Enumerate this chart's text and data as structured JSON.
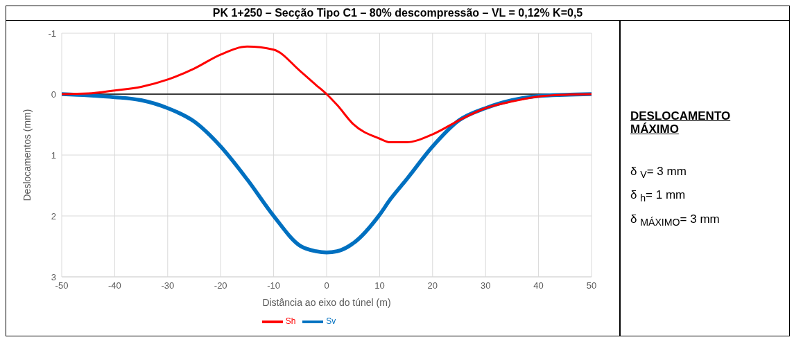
{
  "chart_data": {
    "type": "line",
    "title": "PK 1+250 – Secção Tipo C1 – 80% descompressão – VL = 0,12%  K=0,5",
    "xlabel": "Distância ao eixo do túnel (m)",
    "ylabel": "Deslocamentos (mm)",
    "x": [
      -50,
      -45,
      -40,
      -35,
      -30,
      -25,
      -20,
      -15,
      -10,
      -5,
      -2,
      0,
      2,
      5,
      10,
      12,
      15,
      20,
      25,
      30,
      35,
      40,
      45,
      50
    ],
    "series": [
      {
        "name": "Sv",
        "color": "#0070c0",
        "values": [
          0,
          0.02,
          0.05,
          0.1,
          0.23,
          0.45,
          0.86,
          1.4,
          2.0,
          2.49,
          2.58,
          2.6,
          2.58,
          2.45,
          1.98,
          1.73,
          1.41,
          0.86,
          0.43,
          0.23,
          0.1,
          0.03,
          0.01,
          0
        ]
      },
      {
        "name": "Sh",
        "color": "#ff0000",
        "values": [
          0,
          -0.01,
          -0.06,
          -0.12,
          -0.24,
          -0.42,
          -0.65,
          -0.78,
          -0.73,
          -0.38,
          -0.15,
          0,
          0.18,
          0.49,
          0.73,
          0.79,
          0.79,
          0.66,
          0.43,
          0.23,
          0.12,
          0.04,
          0.01,
          0
        ]
      }
    ],
    "xlim": [
      -50,
      50
    ],
    "xticks": [
      -50,
      -40,
      -30,
      -20,
      -10,
      0,
      10,
      20,
      30,
      40,
      50
    ],
    "ylim": [
      3,
      -1
    ],
    "yticks": [
      -1,
      0,
      1,
      2,
      3
    ],
    "ref_lines": [
      {
        "axis": "y",
        "value": 0,
        "color": "#000000"
      }
    ],
    "grid": true,
    "legend": "bottom",
    "marker": "none",
    "line_style": "solid",
    "annotations": [
      "DESLOCAMENTO MÁXIMO",
      "δ $_{V}$= 3 mm",
      "δ $_{h}$= 1 mm",
      "δ $_{MÁXIMO}$= 3 mm"
    ]
  }
}
